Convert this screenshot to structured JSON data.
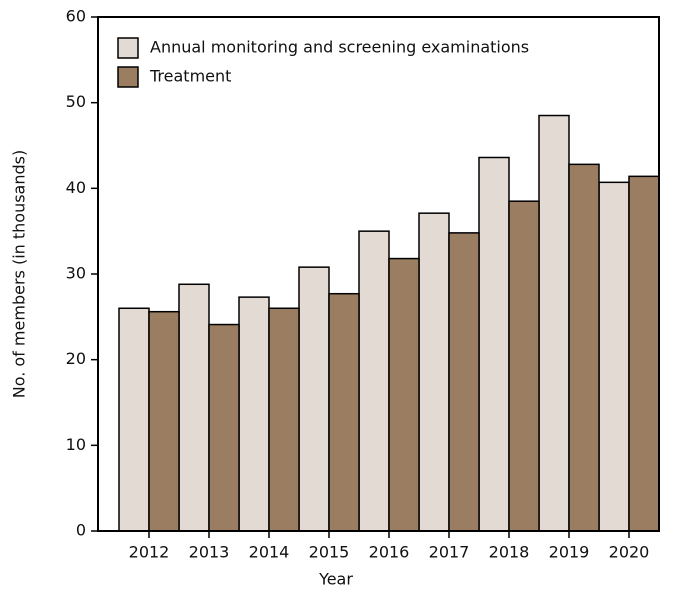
{
  "chart_data": {
    "type": "bar",
    "xlabel": "Year",
    "ylabel": "No. of members (in thousands)",
    "categories": [
      "2012",
      "2013",
      "2014",
      "2015",
      "2016",
      "2017",
      "2018",
      "2019",
      "2020"
    ],
    "series": [
      {
        "name": "Annual monitoring and screening examinations",
        "color": "#e4dad4",
        "values": [
          26,
          28.8,
          27.3,
          30.8,
          35,
          37.1,
          43.6,
          48.5,
          40.7
        ]
      },
      {
        "name": "Treatment",
        "color": "#9b7d61",
        "values": [
          25.6,
          24.1,
          26,
          27.7,
          31.8,
          34.8,
          38.5,
          42.8,
          41.4
        ]
      }
    ],
    "ylim": [
      0,
      60
    ],
    "yticks": [
      0,
      10,
      20,
      30,
      40,
      50,
      60
    ],
    "legend": "upper left"
  }
}
